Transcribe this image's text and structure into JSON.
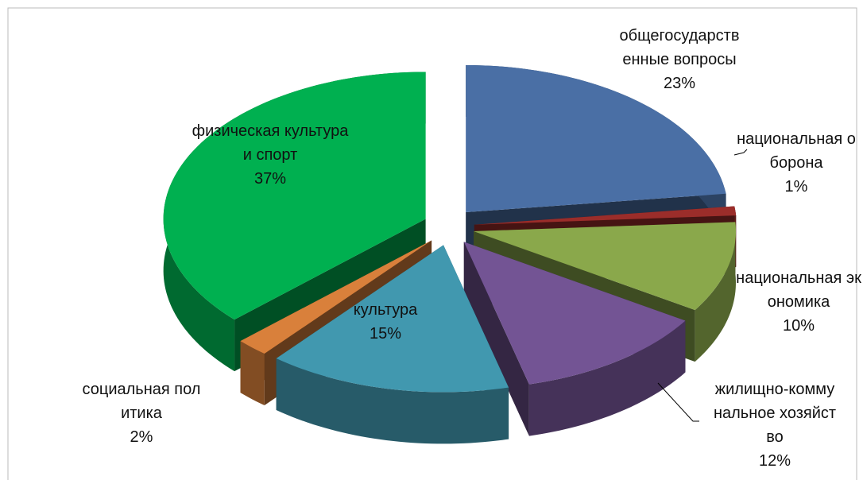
{
  "chart_data": {
    "type": "pie",
    "categories": [
      "общегосударственные вопросы",
      "национальная оборона",
      "национальная экономика",
      "жилищно-коммунальное хозяйство",
      "культура",
      "социальная политика",
      "физическая культура и спорт"
    ],
    "values": [
      23,
      1,
      10,
      12,
      15,
      2,
      37
    ],
    "value_labels": [
      "23%",
      "1%",
      "10%",
      "12%",
      "15%",
      "2%",
      "37%"
    ],
    "colors": [
      "#4a6fa5",
      "#9b2d2a",
      "#8aa84b",
      "#735494",
      "#4198af",
      "#d9803b",
      "#00b050"
    ]
  }
}
